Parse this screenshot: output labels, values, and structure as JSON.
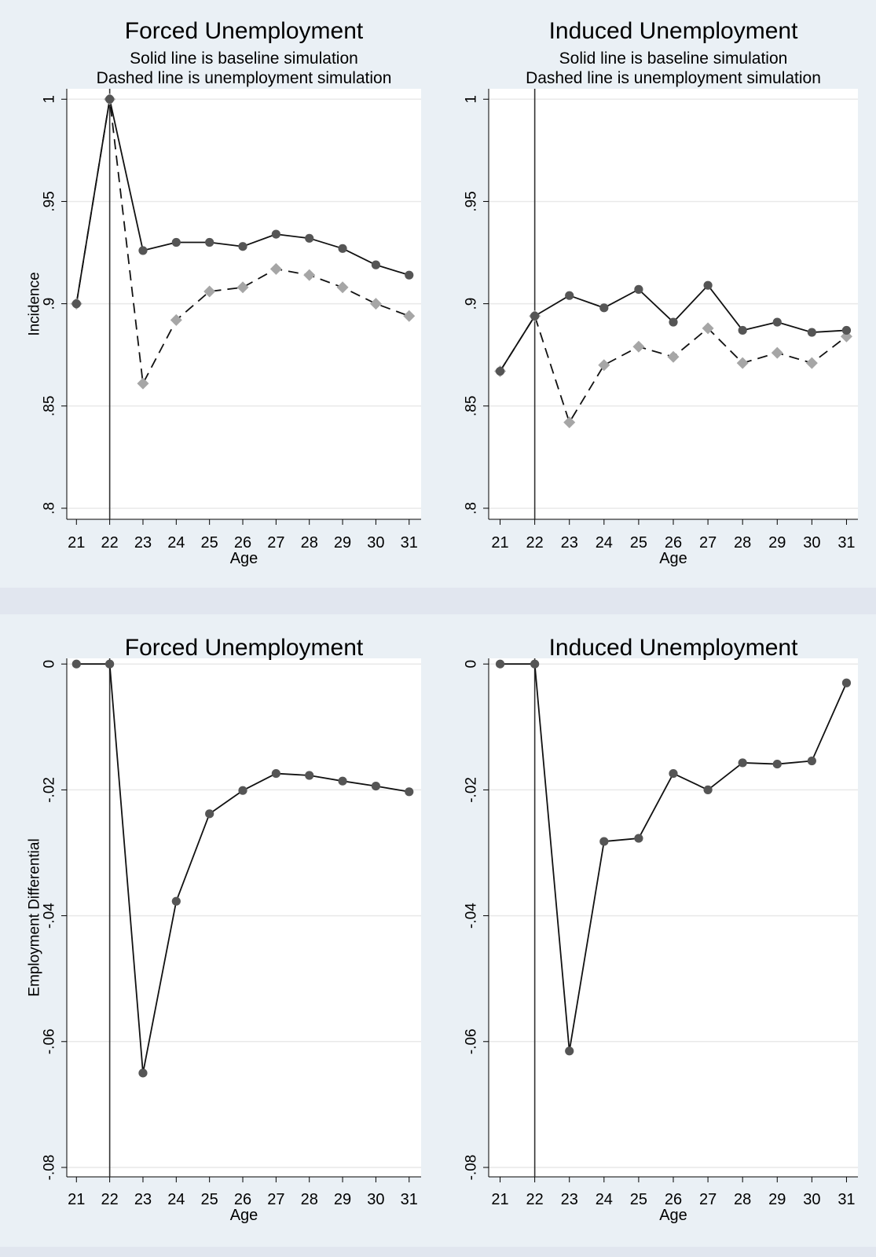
{
  "figure": {
    "background": "#e1e6ef",
    "panel_background": "#eaf0f5",
    "plot_background": "#ffffff"
  },
  "chart_data": [
    {
      "type": "line",
      "title": "Forced Unemployment",
      "subtitle": [
        "Solid line is baseline simulation",
        "Dashed line is unemployment simulation"
      ],
      "xlabel": "Age",
      "ylabel": "Incidence",
      "x": [
        21,
        22,
        23,
        24,
        25,
        26,
        27,
        28,
        29,
        30,
        31
      ],
      "xlim": [
        21,
        31
      ],
      "ylim": [
        0.8,
        1.0
      ],
      "ytick_values": [
        0.8,
        0.85,
        0.9,
        0.95,
        1.0
      ],
      "ytick_labels": [
        ".8",
        ".85",
        ".9",
        ".95",
        "1"
      ],
      "vline_x": 22,
      "grid": true,
      "series": [
        {
          "style": "solid",
          "marker": "circle",
          "color": "#555555",
          "values": [
            0.9,
            1.0,
            0.926,
            0.93,
            0.93,
            0.928,
            0.934,
            0.932,
            0.927,
            0.919,
            0.914
          ]
        },
        {
          "style": "dashed",
          "marker": "diamond",
          "color": "#a6a6a6",
          "values": [
            0.9,
            1.0,
            0.861,
            0.892,
            0.906,
            0.908,
            0.917,
            0.914,
            0.908,
            0.9,
            0.894
          ]
        }
      ]
    },
    {
      "type": "line",
      "title": "Induced Unemployment",
      "subtitle": [
        "Solid line is baseline simulation",
        "Dashed line is unemployment simulation"
      ],
      "xlabel": "Age",
      "ylabel": "",
      "x": [
        21,
        22,
        23,
        24,
        25,
        26,
        27,
        28,
        29,
        30,
        31
      ],
      "xlim": [
        21,
        31
      ],
      "ylim": [
        0.8,
        1.0
      ],
      "ytick_values": [
        0.8,
        0.85,
        0.9,
        0.95,
        1.0
      ],
      "ytick_labels": [
        ".8",
        ".85",
        ".9",
        ".95",
        "1"
      ],
      "vline_x": 22,
      "grid": true,
      "series": [
        {
          "style": "solid",
          "marker": "circle",
          "color": "#555555",
          "values": [
            0.867,
            0.894,
            0.904,
            0.898,
            0.907,
            0.891,
            0.909,
            0.887,
            0.891,
            0.886,
            0.887
          ]
        },
        {
          "style": "dashed",
          "marker": "diamond",
          "color": "#a6a6a6",
          "values": [
            0.867,
            0.894,
            0.842,
            0.87,
            0.879,
            0.874,
            0.888,
            0.871,
            0.876,
            0.871,
            0.884
          ]
        }
      ]
    },
    {
      "type": "line",
      "title": "Forced Unemployment",
      "subtitle": [],
      "xlabel": "Age",
      "ylabel": "Employment Differential",
      "x": [
        21,
        22,
        23,
        24,
        25,
        26,
        27,
        28,
        29,
        30,
        31
      ],
      "xlim": [
        21,
        31
      ],
      "ylim": [
        -0.08,
        0
      ],
      "ytick_values": [
        -0.08,
        -0.06,
        -0.04,
        -0.02,
        0
      ],
      "ytick_labels": [
        "-.08",
        "-.06",
        "-.04",
        "-.02",
        "0"
      ],
      "vline_x": 22,
      "grid": true,
      "series": [
        {
          "style": "solid",
          "marker": "circle",
          "color": "#555555",
          "values": [
            0,
            0,
            -0.065,
            -0.0377,
            -0.0238,
            -0.0201,
            -0.0174,
            -0.0177,
            -0.0186,
            -0.0194,
            -0.0203
          ]
        }
      ]
    },
    {
      "type": "line",
      "title": "Induced Unemployment",
      "subtitle": [],
      "xlabel": "Age",
      "ylabel": "",
      "x": [
        21,
        22,
        23,
        24,
        25,
        26,
        27,
        28,
        29,
        30,
        31
      ],
      "xlim": [
        21,
        31
      ],
      "ylim": [
        -0.08,
        0
      ],
      "ytick_values": [
        -0.08,
        -0.06,
        -0.04,
        -0.02,
        0
      ],
      "ytick_labels": [
        "-.08",
        "-.06",
        "-.04",
        "-.02",
        "0"
      ],
      "vline_x": 22,
      "grid": true,
      "series": [
        {
          "style": "solid",
          "marker": "circle",
          "color": "#555555",
          "values": [
            0,
            0,
            -0.0615,
            -0.0282,
            -0.0277,
            -0.0174,
            -0.02,
            -0.0157,
            -0.0159,
            -0.0154,
            -0.003
          ]
        }
      ]
    }
  ]
}
